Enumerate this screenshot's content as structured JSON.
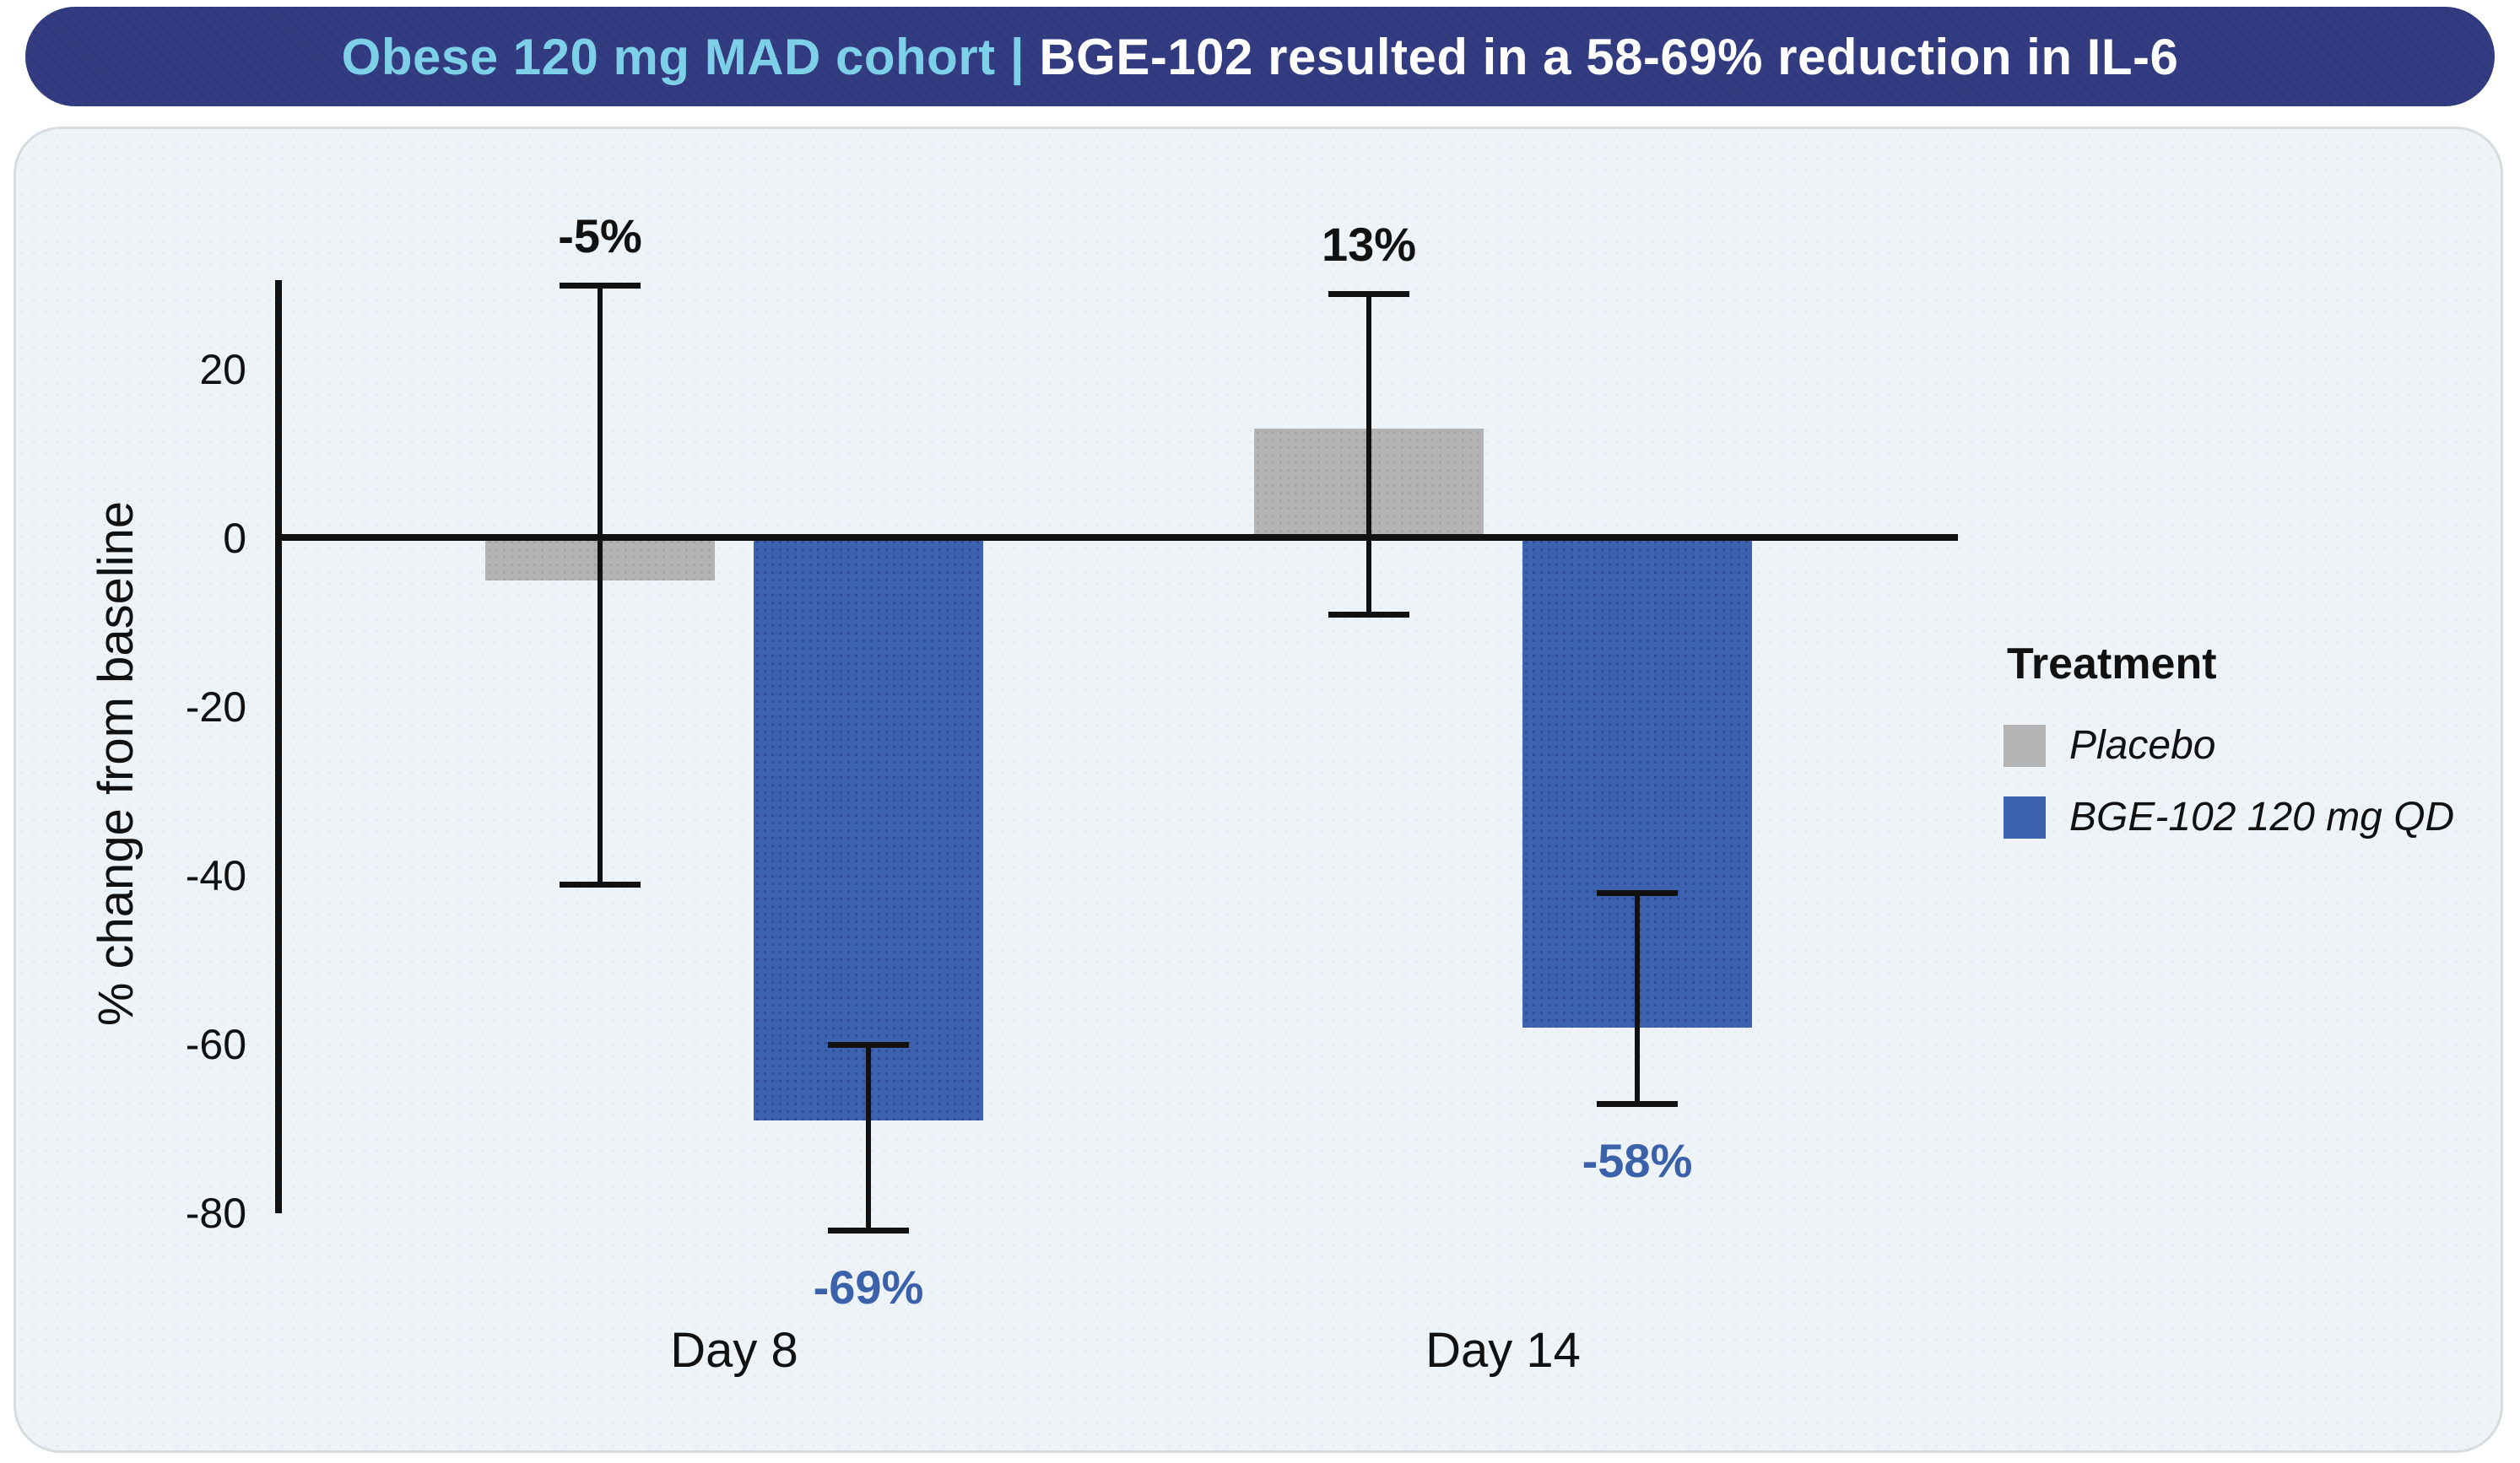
{
  "banner": {
    "cohort_label": "Obese 120 mg MAD cohort",
    "separator": " | ",
    "headline": "BGE-102 resulted in a 58-69% reduction in IL-6"
  },
  "colors": {
    "banner_bg": "#2e3b80",
    "banner_cohort_text": "#7ed0e8",
    "banner_headline_text": "#ffffff",
    "card_bg": "#eef3f7",
    "card_border": "#d7dce1",
    "placebo_gray": "#b3b3b3",
    "bge_blue": "#3e63ae",
    "value_label_blue": "#3c61ab",
    "axis_black": "#111111"
  },
  "chart_data": {
    "type": "bar",
    "title": "Obese 120 mg MAD cohort | BGE-102 resulted in a 58-69% reduction in IL-6",
    "xlabel": "",
    "ylabel": "% change from baseline",
    "categories": [
      "Day 8",
      "Day 14"
    ],
    "yticks": [
      20,
      0,
      -20,
      -40,
      -60,
      -80
    ],
    "ylim": [
      -80,
      31
    ],
    "grid": false,
    "legend_position": "right",
    "legend_title": "Treatment",
    "series": [
      {
        "name": "Placebo",
        "color": "#b3b3b3",
        "values": [
          -5,
          13
        ],
        "error_high": [
          30,
          29
        ],
        "error_low": [
          -41,
          -9
        ],
        "data_labels": [
          "-5%",
          "13%"
        ],
        "label_placement": "above",
        "label_color": "#111111"
      },
      {
        "name": "BGE-102 120 mg QD",
        "color": "#3e63ae",
        "values": [
          -69,
          -58
        ],
        "error_high": [
          -60,
          -42
        ],
        "error_low": [
          -82,
          -67
        ],
        "data_labels": [
          "-69%",
          "-58%"
        ],
        "label_placement": "below",
        "label_color": "#3c61ab"
      }
    ]
  }
}
